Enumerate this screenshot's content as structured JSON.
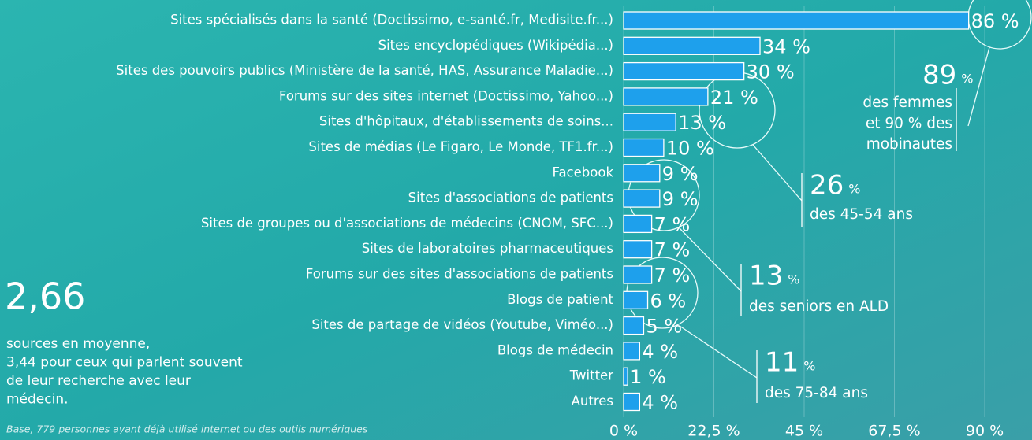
{
  "chart_data": {
    "type": "bar",
    "orientation": "horizontal",
    "categories": [
      "Sites spécialisés dans la santé (Doctissimo, e-santé.fr, Medisite.fr...)",
      "Sites encyclopédiques (Wikipédia...)",
      "Sites des pouvoirs publics (Ministère de la santé, HAS, Assurance Maladie...)",
      "Forums sur des sites internet (Doctissimo, Yahoo...)",
      "Sites d'hôpitaux, d'établissements de soins...",
      "Sites de médias (Le Figaro, Le Monde, TF1.fr...)",
      "Facebook",
      "Sites d'associations de patients",
      "Sites de groupes ou d'associations de médecins (CNOM, SFC...)",
      "Sites de laboratoires pharmaceutiques",
      "Forums sur des sites d'associations de patients",
      "Blogs de patient",
      "Sites de partage de vidéos (Youtube, Viméo...)",
      "Blogs de médecin",
      "Twitter",
      "Autres"
    ],
    "values": [
      86,
      34,
      30,
      21,
      13,
      10,
      9,
      9,
      7,
      7,
      7,
      6,
      5,
      4,
      1,
      4
    ],
    "value_labels": [
      "86 %",
      "34 %",
      "30 %",
      "21 %",
      "13 %",
      "10 %",
      "9 %",
      "9 %",
      "7 %",
      "7 %",
      "7 %",
      "6 %",
      "5 %",
      "4 %",
      "1 %",
      "4 %"
    ],
    "color": "#1ea0ec",
    "xlim": [
      0,
      90
    ],
    "xticks": [
      {
        "value": 0,
        "label": "0 %"
      },
      {
        "value": 22.5,
        "label": "22,5 %"
      },
      {
        "value": 45,
        "label": "45 %"
      },
      {
        "value": 67.5,
        "label": "67,5 %"
      },
      {
        "value": 90,
        "label": "90 %"
      }
    ],
    "grid": true,
    "summary": {
      "value": "2,66",
      "lines": [
        "sources en moyenne,",
        "3,44 pour ceux qui parlent souvent",
        "de leur recherche avec leur",
        "médecin."
      ]
    },
    "footnote": "Base, 779 personnes ayant déjà utilisé internet ou des outils numériques",
    "callouts": [
      {
        "number": 89,
        "unit": "%",
        "lines": [
          "des femmes",
          "et 90 % des",
          "mobinautes"
        ]
      },
      {
        "number": 26,
        "unit": "%",
        "lines": [
          "des 45-54 ans"
        ]
      },
      {
        "number": 13,
        "unit": "%",
        "lines": [
          "des seniors en ALD"
        ]
      },
      {
        "number": 11,
        "unit": "%",
        "lines": [
          "des 75-84 ans"
        ]
      }
    ]
  }
}
